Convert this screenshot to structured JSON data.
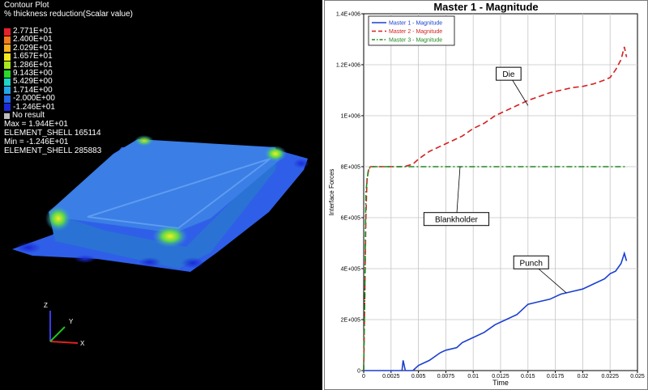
{
  "contour": {
    "title": "Contour Plot",
    "subtitle": "% thickness reduction(Scalar value)",
    "legend": [
      {
        "label": "2.771E+01",
        "color": "#e8202a"
      },
      {
        "label": "2.400E+01",
        "color": "#f47a1e"
      },
      {
        "label": "2.029E+01",
        "color": "#f6b020"
      },
      {
        "label": "1.657E+01",
        "color": "#f4e81c"
      },
      {
        "label": "1.286E+01",
        "color": "#a8e81c"
      },
      {
        "label": "9.143E+00",
        "color": "#2ad82a"
      },
      {
        "label": "5.429E+00",
        "color": "#20d4c8"
      },
      {
        "label": "1.714E+00",
        "color": "#22a8e8"
      },
      {
        "label": "-2.000E+00",
        "color": "#2268e8"
      },
      {
        "label": "-1.246E+01",
        "color": "#1a2ad8"
      }
    ],
    "no_result_label": "No result",
    "info_lines": [
      "Max = 1.944E+01",
      "ELEMENT_SHELL 165114",
      "Min = -1.246E+01",
      "ELEMENT_SHELL 285883"
    ],
    "axes": {
      "z": "Z",
      "y": "Y",
      "x": "X"
    }
  },
  "chart_data": {
    "type": "line",
    "title": "Master 1 - Magnitude",
    "xlabel": "Time",
    "ylabel": "Interface Forces",
    "xlim": [
      0,
      0.025
    ],
    "ylim": [
      0,
      1400000
    ],
    "x_ticks": [
      "0",
      "0.0025",
      "0.005",
      "0.0075",
      "0.01",
      "0.0125",
      "0.015",
      "0.0175",
      "0.02",
      "0.0225",
      "0.025"
    ],
    "y_ticks": [
      "0",
      "2E+005",
      "4E+005",
      "6E+005",
      "8E+005",
      "1E+006",
      "1.2E+006",
      "1.4E+006"
    ],
    "grid": true,
    "legend_position": "top-left",
    "series": [
      {
        "name": "Master 1 - Magnitude",
        "color": "#1a3fd0",
        "dash": "solid",
        "x": [
          0,
          0.0035,
          0.0036,
          0.0038,
          0.004,
          0.0045,
          0.005,
          0.006,
          0.007,
          0.0075,
          0.0085,
          0.009,
          0.01,
          0.011,
          0.012,
          0.013,
          0.014,
          0.0145,
          0.015,
          0.016,
          0.017,
          0.018,
          0.019,
          0.02,
          0.021,
          0.022,
          0.0225,
          0.023,
          0.0235,
          0.0238,
          0.024
        ],
        "y": [
          0,
          0,
          40000,
          0,
          0,
          0,
          20000,
          40000,
          70000,
          80000,
          90000,
          110000,
          130000,
          150000,
          180000,
          200000,
          220000,
          240000,
          260000,
          270000,
          280000,
          300000,
          310000,
          320000,
          340000,
          360000,
          380000,
          390000,
          420000,
          460000,
          430000
        ]
      },
      {
        "name": "Master 2 - Magnitude",
        "color": "#d42020",
        "dash": "dashed",
        "x": [
          0,
          0.0001,
          0.0002,
          0.0003,
          0.0005,
          0.001,
          0.003,
          0.0037,
          0.0045,
          0.005,
          0.006,
          0.007,
          0.008,
          0.009,
          0.01,
          0.011,
          0.012,
          0.013,
          0.014,
          0.015,
          0.016,
          0.017,
          0.018,
          0.019,
          0.02,
          0.021,
          0.022,
          0.0225,
          0.023,
          0.0235,
          0.0238,
          0.024
        ],
        "y": [
          0,
          300000,
          600000,
          750000,
          800000,
          800000,
          800000,
          800000,
          810000,
          830000,
          860000,
          880000,
          900000,
          920000,
          950000,
          970000,
          1000000,
          1020000,
          1040000,
          1060000,
          1075000,
          1090000,
          1100000,
          1110000,
          1115000,
          1125000,
          1140000,
          1150000,
          1180000,
          1220000,
          1270000,
          1230000
        ]
      },
      {
        "name": "Master 3 - Magnitude",
        "color": "#1f8a1f",
        "dash": "dashdot",
        "x": [
          0,
          0.0001,
          0.0002,
          0.0004,
          0.0006,
          0.001,
          0.005,
          0.01,
          0.015,
          0.02,
          0.024
        ],
        "y": [
          0,
          300000,
          700000,
          780000,
          800000,
          800000,
          800000,
          800000,
          800000,
          800000,
          800000
        ]
      }
    ],
    "annotations": [
      {
        "text": "Die",
        "x": 0.0121,
        "y": 1190000,
        "target_x": 0.015,
        "target_y": 1040000
      },
      {
        "text": "Blankholder",
        "x": 0.0055,
        "y": 620000,
        "target_x": 0.0088,
        "target_y": 800000
      },
      {
        "text": "Punch",
        "x": 0.0137,
        "y": 450000,
        "target_x": 0.0185,
        "target_y": 305000
      }
    ]
  }
}
